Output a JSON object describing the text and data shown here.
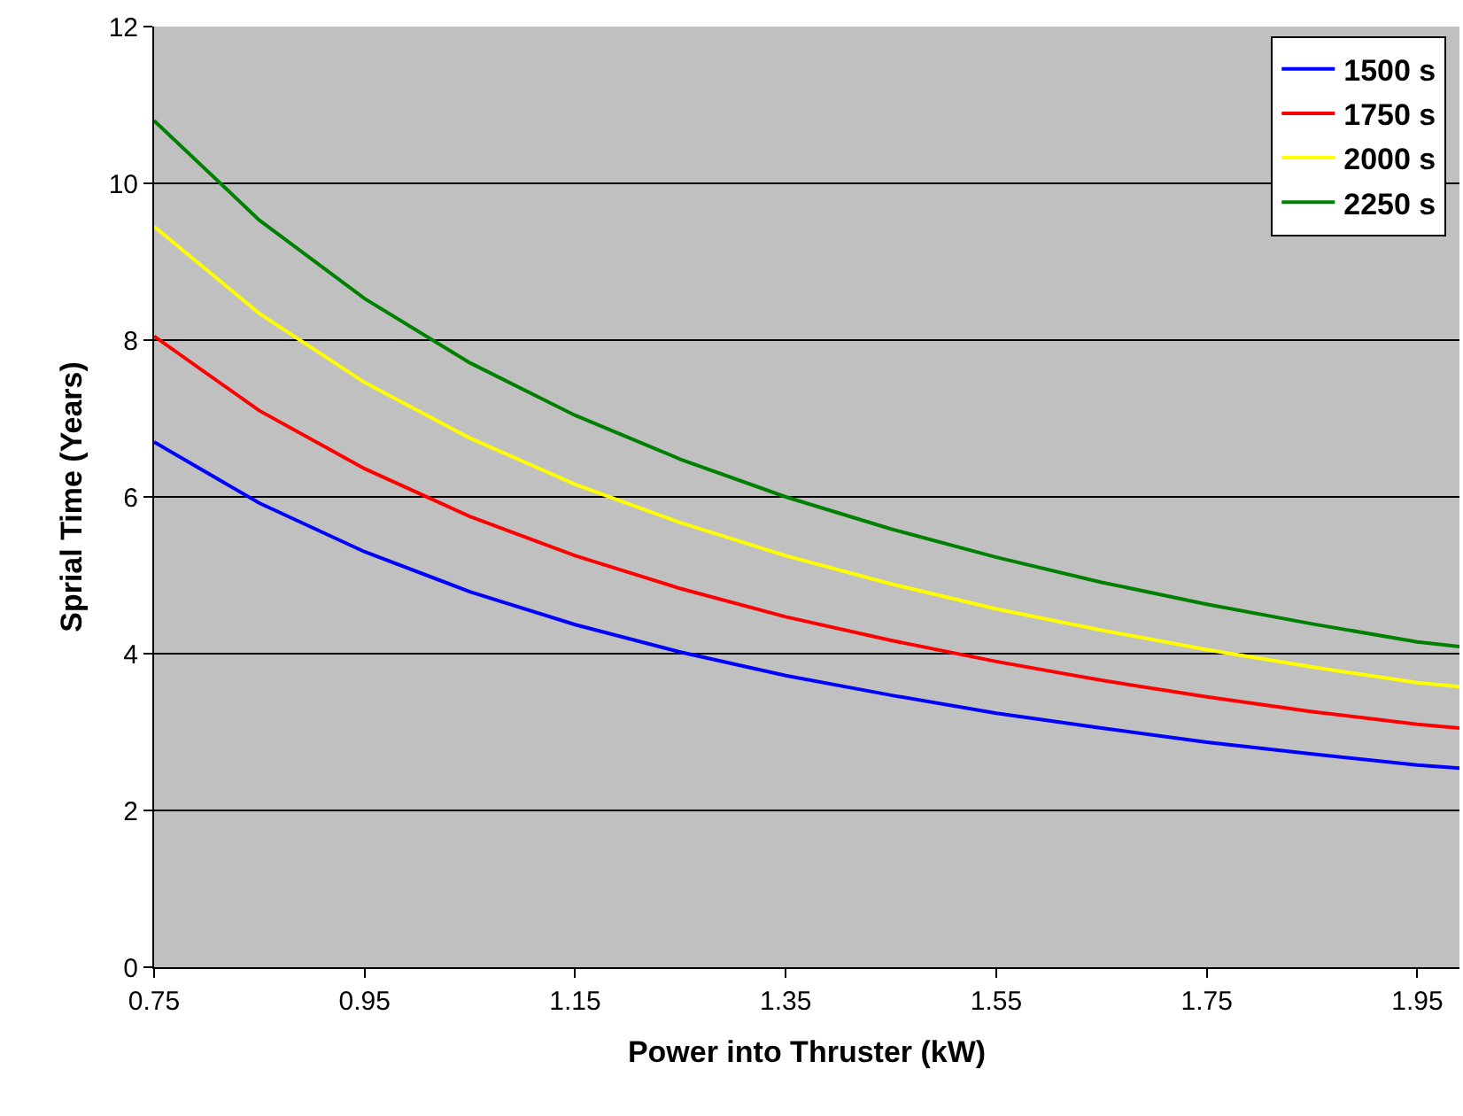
{
  "chart_data": {
    "type": "line",
    "xlabel": "Power into Thruster (kW)",
    "ylabel": "Sprial Time (Years)",
    "x": [
      0.75,
      0.85,
      0.95,
      1.05,
      1.15,
      1.25,
      1.35,
      1.45,
      1.55,
      1.65,
      1.75,
      1.85,
      1.95,
      1.99
    ],
    "series": [
      {
        "name": "1500 s",
        "color": "#0000ff",
        "values": [
          6.7,
          5.92,
          5.3,
          4.79,
          4.37,
          4.02,
          3.72,
          3.47,
          3.24,
          3.05,
          2.87,
          2.72,
          2.58,
          2.54
        ]
      },
      {
        "name": "1750 s",
        "color": "#ff0000",
        "values": [
          8.05,
          7.1,
          6.36,
          5.75,
          5.25,
          4.83,
          4.47,
          4.17,
          3.9,
          3.66,
          3.45,
          3.26,
          3.1,
          3.05
        ]
      },
      {
        "name": "2000 s",
        "color": "#ffff00",
        "values": [
          9.45,
          8.34,
          7.46,
          6.75,
          6.16,
          5.67,
          5.25,
          4.89,
          4.57,
          4.3,
          4.05,
          3.83,
          3.63,
          3.58
        ]
      },
      {
        "name": "2250 s",
        "color": "#008000",
        "values": [
          10.8,
          9.53,
          8.53,
          7.71,
          7.04,
          6.48,
          6.0,
          5.59,
          5.23,
          4.91,
          4.63,
          4.38,
          4.15,
          4.09
        ]
      }
    ],
    "xlim": [
      0.75,
      1.99
    ],
    "xticks": [
      0.75,
      0.95,
      1.15,
      1.35,
      1.55,
      1.75,
      1.95
    ],
    "ylim": [
      0,
      12
    ],
    "yticks": [
      0,
      2,
      4,
      6,
      8,
      10,
      12
    ],
    "grid": "y",
    "legend": "top right",
    "marker": "none",
    "line_style": "solid"
  }
}
